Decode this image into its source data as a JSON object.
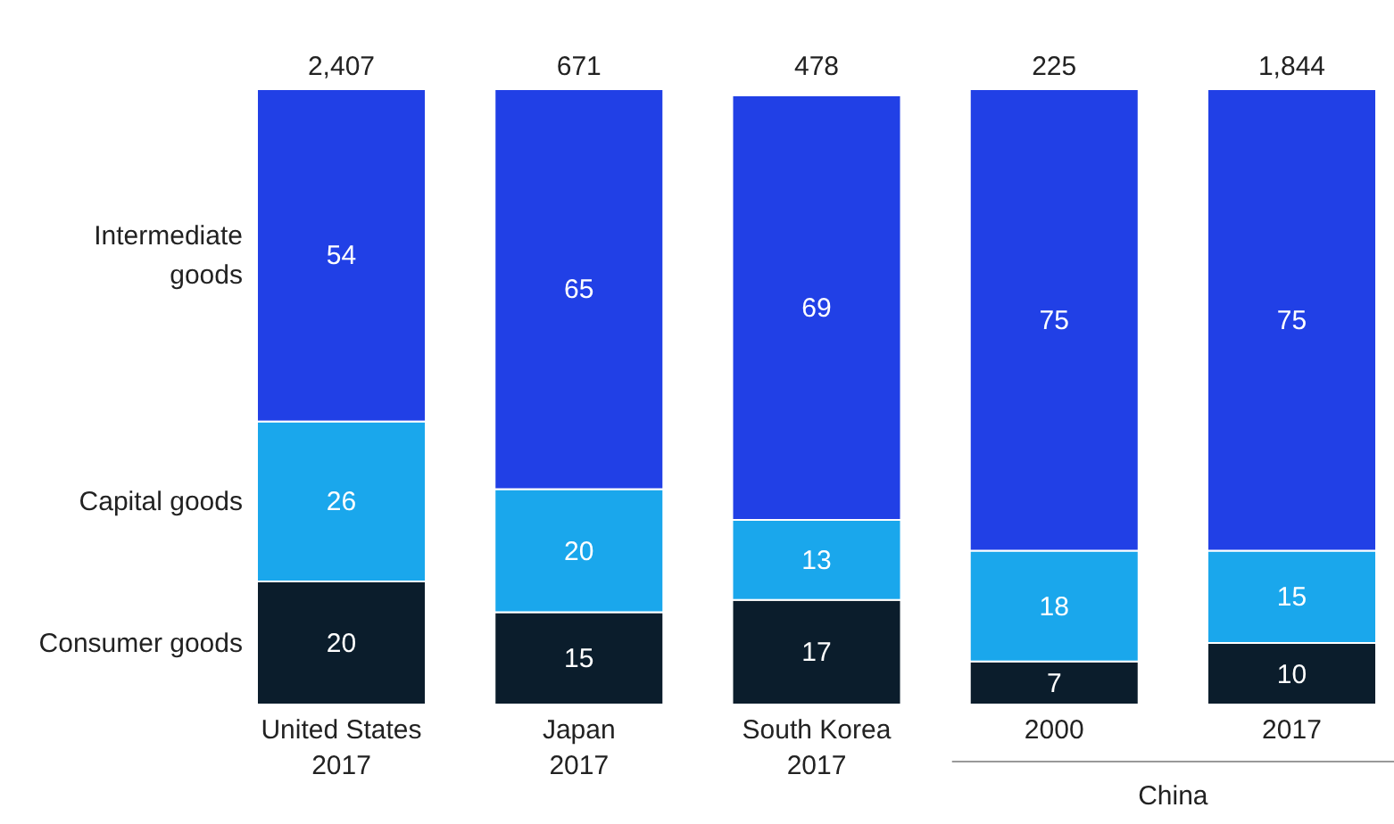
{
  "chart_data": {
    "type": "bar",
    "stacked": true,
    "categories": [
      "United States\n2017",
      "Japan\n2017",
      "South Korea\n2017",
      "2000",
      "2017"
    ],
    "series": [
      {
        "name": "Consumer goods",
        "color": "#0b1d2c",
        "values": [
          20,
          15,
          17,
          7,
          10
        ]
      },
      {
        "name": "Capital goods",
        "color": "#1aa7ec",
        "values": [
          26,
          20,
          13,
          18,
          15
        ]
      },
      {
        "name": "Intermediate goods",
        "color": "#2140e6",
        "values": [
          54,
          65,
          69,
          75,
          75
        ]
      }
    ],
    "ylim": [
      0,
      100
    ],
    "data_labels": true,
    "annotations": [
      "2,407",
      "671",
      "478",
      "225",
      "1,844",
      "China"
    ]
  }
}
